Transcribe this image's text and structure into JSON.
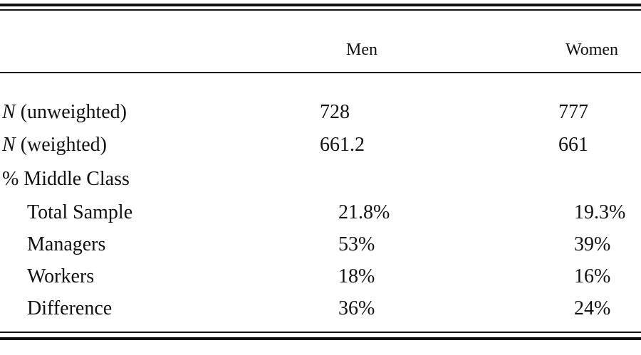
{
  "table": {
    "header": [
      "Men",
      "Women"
    ],
    "rows": [
      {
        "label": {
          "italic": "N",
          "text": "(unweighted)"
        },
        "values": [
          "728",
          "777"
        ]
      },
      {
        "label": {
          "italic": "N",
          "text": "(weighted)"
        },
        "values": [
          "661.2",
          "661"
        ]
      }
    ],
    "group": {
      "title": "% Middle Class",
      "rows": [
        {
          "label": "Total Sample",
          "values": [
            "21.8%",
            "19.3%"
          ]
        },
        {
          "label": "Managers",
          "values": [
            "53%",
            "39%"
          ]
        },
        {
          "label": "Workers",
          "values": [
            "18%",
            "16%"
          ]
        },
        {
          "label": "Difference",
          "values": [
            "36%",
            "24%"
          ]
        }
      ]
    }
  }
}
